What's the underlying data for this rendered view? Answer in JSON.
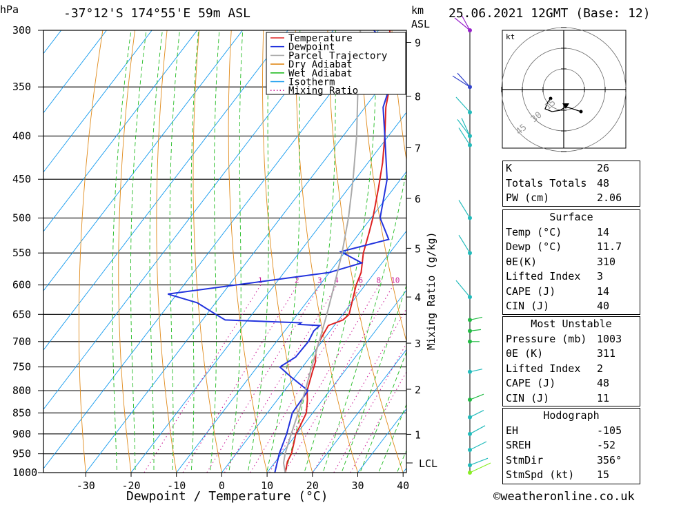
{
  "header": {
    "location": "-37°12'S 174°55'E 59m ASL",
    "datetime": "25.06.2021 12GMT (Base: 12)",
    "hpa_label": "hPa",
    "km_label": "km",
    "asl_label": "ASL"
  },
  "chart_data": {
    "type": "line",
    "xlabel": "Dewpoint / Temperature (°C)",
    "ylabel_right": "Mixing Ratio (g/kg)",
    "xlim": [
      -40,
      40
    ],
    "ylim_hpa": [
      1000,
      300
    ],
    "skew": true,
    "pressure_ticks": [
      300,
      350,
      400,
      450,
      500,
      550,
      600,
      650,
      700,
      750,
      800,
      850,
      900,
      950,
      1000
    ],
    "temperature_ticks": [
      -30,
      -20,
      -10,
      0,
      10,
      20,
      30,
      40
    ],
    "height_ticks_km": [
      {
        "km": "9",
        "p": 310
      },
      {
        "km": "8",
        "p": 359
      },
      {
        "km": "7",
        "p": 413
      },
      {
        "km": "6",
        "p": 474
      },
      {
        "km": "5",
        "p": 543
      },
      {
        "km": "4",
        "p": 620
      },
      {
        "km": "3",
        "p": 703
      },
      {
        "km": "2",
        "p": 797
      },
      {
        "km": "1",
        "p": 901
      }
    ],
    "lcl_label": "LCL",
    "lcl_p": 974,
    "mixing_ratio_values": [
      "1",
      "2",
      "3",
      "4",
      "6",
      "8",
      "10",
      "15",
      "20",
      "25"
    ],
    "legend": [
      "Temperature",
      "Dewpoint",
      "Parcel Trajectory",
      "Dry Adiabat",
      "Wet Adiabat",
      "Isotherm",
      "Mixing Ratio"
    ],
    "series": [
      {
        "name": "Temperature",
        "color": "#dd2222",
        "points": [
          [
            1000,
            14
          ],
          [
            970,
            12.6
          ],
          [
            950,
            12.2
          ],
          [
            920,
            10.8
          ],
          [
            900,
            9.8
          ],
          [
            880,
            9.4
          ],
          [
            850,
            8.6
          ],
          [
            820,
            6.6
          ],
          [
            800,
            5
          ],
          [
            760,
            3
          ],
          [
            740,
            2
          ],
          [
            720,
            0.4
          ],
          [
            700,
            -0.6
          ],
          [
            670,
            -1.3
          ],
          [
            660,
            1
          ],
          [
            650,
            1.4
          ],
          [
            620,
            -0.6
          ],
          [
            600,
            -2
          ],
          [
            580,
            -3
          ],
          [
            550,
            -5.8
          ],
          [
            520,
            -8
          ],
          [
            500,
            -9.6
          ],
          [
            460,
            -13.5
          ],
          [
            430,
            -16.8
          ],
          [
            400,
            -20.8
          ],
          [
            370,
            -25.4
          ],
          [
            350,
            -28
          ],
          [
            330,
            -32
          ],
          [
            310,
            -35.5
          ],
          [
            300,
            -37.5
          ]
        ]
      },
      {
        "name": "Dewpoint",
        "color": "#2233dd",
        "points": [
          [
            1000,
            11.7
          ],
          [
            950,
            9.5
          ],
          [
            900,
            7.8
          ],
          [
            850,
            5.5
          ],
          [
            800,
            5.2
          ],
          [
            770,
            -1
          ],
          [
            750,
            -5
          ],
          [
            730,
            -3.2
          ],
          [
            700,
            -3
          ],
          [
            680,
            -3.6
          ],
          [
            670,
            -3.2
          ],
          [
            668,
            -8
          ],
          [
            665,
            -7.8
          ],
          [
            660,
            -25
          ],
          [
            650,
            -28
          ],
          [
            630,
            -34
          ],
          [
            615,
            -42
          ],
          [
            580,
            -10
          ],
          [
            565,
            -4.5
          ],
          [
            548,
            -11
          ],
          [
            530,
            -2.5
          ],
          [
            500,
            -8
          ],
          [
            450,
            -13
          ],
          [
            400,
            -20.8
          ],
          [
            370,
            -26
          ],
          [
            350,
            -28
          ],
          [
            340,
            -31
          ],
          [
            320,
            -33
          ],
          [
            300,
            -41
          ]
        ]
      },
      {
        "name": "Parcel Trajectory",
        "color": "#aaaaaa",
        "points": [
          [
            1000,
            14
          ],
          [
            974,
            12
          ],
          [
            950,
            10.8
          ],
          [
            900,
            8.8
          ],
          [
            850,
            6.8
          ],
          [
            800,
            4.6
          ],
          [
            750,
            2
          ],
          [
            700,
            -0.6
          ],
          [
            650,
            -3.5
          ],
          [
            600,
            -6.8
          ],
          [
            550,
            -10.5
          ],
          [
            500,
            -15
          ],
          [
            450,
            -20.5
          ],
          [
            400,
            -27
          ],
          [
            350,
            -35
          ],
          [
            300,
            -44
          ]
        ]
      }
    ],
    "wind_barbs_note": "wind profile on right side"
  },
  "hodograph": {
    "unit": "kt",
    "ring_labels": [
      "45",
      "30",
      "15"
    ]
  },
  "indices": {
    "rows": [
      {
        "k": "K",
        "v": "26"
      },
      {
        "k": "Totals Totals",
        "v": "48"
      },
      {
        "k": "PW (cm)",
        "v": "2.06"
      }
    ]
  },
  "surface": {
    "title": "Surface",
    "rows": [
      {
        "k": "Temp (°C)",
        "v": "14"
      },
      {
        "k": "Dewp (°C)",
        "v": "11.7"
      },
      {
        "k": "θE(K)",
        "v": "310"
      },
      {
        "k": "Lifted Index",
        "v": "3"
      },
      {
        "k": "CAPE (J)",
        "v": "14"
      },
      {
        "k": "CIN (J)",
        "v": "40"
      }
    ]
  },
  "most_unstable": {
    "title": "Most Unstable",
    "rows": [
      {
        "k": "Pressure (mb)",
        "v": "1003"
      },
      {
        "k": "θE (K)",
        "v": "311"
      },
      {
        "k": "Lifted Index",
        "v": "2"
      },
      {
        "k": "CAPE (J)",
        "v": "48"
      },
      {
        "k": "CIN (J)",
        "v": "11"
      }
    ]
  },
  "hodo_stats": {
    "title": "Hodograph",
    "rows": [
      {
        "k": "EH",
        "v": "-105"
      },
      {
        "k": "SREH",
        "v": "-52"
      },
      {
        "k": "StmDir",
        "v": "356°"
      },
      {
        "k": "StmSpd (kt)",
        "v": "15"
      }
    ]
  },
  "footer": {
    "copyright": "©weatheronline.co.uk"
  }
}
